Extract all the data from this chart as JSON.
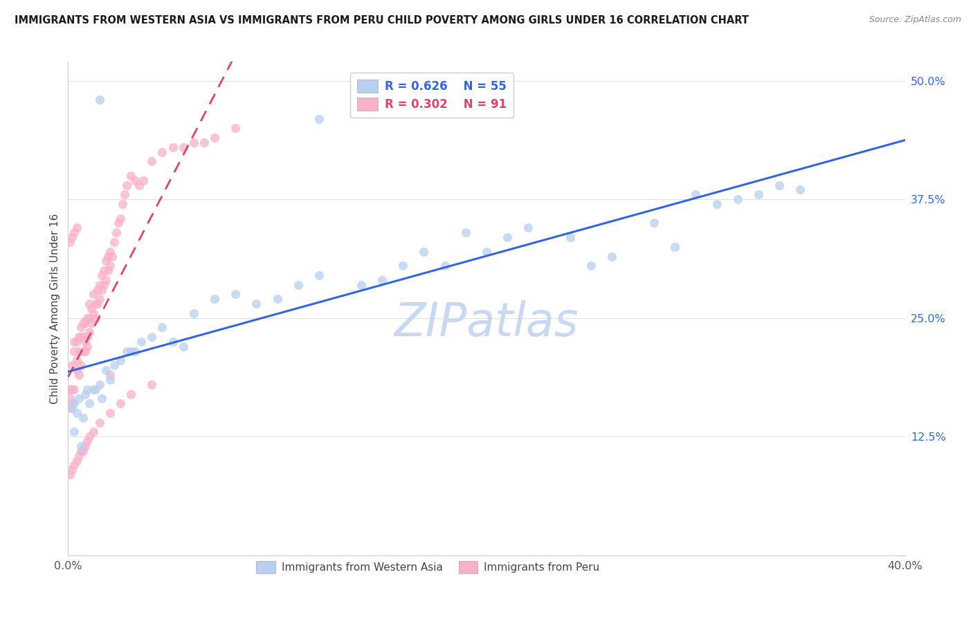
{
  "title": "IMMIGRANTS FROM WESTERN ASIA VS IMMIGRANTS FROM PERU CHILD POVERTY AMONG GIRLS UNDER 16 CORRELATION CHART",
  "source": "Source: ZipAtlas.com",
  "ylabel": "Child Poverty Among Girls Under 16",
  "xlim": [
    0.0,
    0.4
  ],
  "ylim": [
    0.0,
    0.52
  ],
  "ytick_vals": [
    0.0,
    0.125,
    0.25,
    0.375,
    0.5
  ],
  "ytick_labels": [
    "",
    "12.5%",
    "25.0%",
    "37.5%",
    "50.0%"
  ],
  "xtick_vals": [
    0.0,
    0.08,
    0.16,
    0.24,
    0.32,
    0.4
  ],
  "xtick_labels": [
    "0.0%",
    "",
    "",
    "",
    "",
    "40.0%"
  ],
  "grid_color": "#e0e0e0",
  "background_color": "#ffffff",
  "western_asia_color": "#b8d0f0",
  "peru_color": "#f8b0c8",
  "line_wa_color": "#3366dd",
  "line_peru_color": "#dd4466",
  "line_diag_color": "#ddbbcc",
  "legend_wa_r": "R = 0.626",
  "legend_wa_n": "N = 55",
  "legend_peru_r": "R = 0.302",
  "legend_peru_n": "N = 91",
  "watermark": "ZIPatlas",
  "watermark_color": "#c8d8f0",
  "legend_label_wa": "Immigrants from Western Asia",
  "legend_label_peru": "Immigrants from Peru",
  "wa_x": [
    0.002,
    0.003,
    0.004,
    0.005,
    0.007,
    0.008,
    0.009,
    0.01,
    0.012,
    0.013,
    0.015,
    0.016,
    0.018,
    0.02,
    0.022,
    0.025,
    0.028,
    0.03,
    0.032,
    0.035,
    0.04,
    0.045,
    0.05,
    0.055,
    0.06,
    0.07,
    0.08,
    0.09,
    0.1,
    0.11,
    0.12,
    0.14,
    0.15,
    0.16,
    0.17,
    0.18,
    0.19,
    0.2,
    0.21,
    0.22,
    0.24,
    0.25,
    0.26,
    0.28,
    0.29,
    0.3,
    0.31,
    0.32,
    0.33,
    0.34,
    0.35,
    0.003,
    0.006,
    0.12,
    0.015
  ],
  "wa_y": [
    0.155,
    0.16,
    0.15,
    0.165,
    0.145,
    0.17,
    0.175,
    0.16,
    0.175,
    0.175,
    0.18,
    0.165,
    0.195,
    0.185,
    0.2,
    0.205,
    0.215,
    0.215,
    0.215,
    0.225,
    0.23,
    0.24,
    0.225,
    0.22,
    0.255,
    0.27,
    0.275,
    0.265,
    0.27,
    0.285,
    0.295,
    0.285,
    0.29,
    0.305,
    0.32,
    0.305,
    0.34,
    0.32,
    0.335,
    0.345,
    0.335,
    0.305,
    0.315,
    0.35,
    0.325,
    0.38,
    0.37,
    0.375,
    0.38,
    0.39,
    0.385,
    0.13,
    0.115,
    0.46,
    0.48
  ],
  "peru_x": [
    0.001,
    0.001,
    0.001,
    0.002,
    0.002,
    0.002,
    0.003,
    0.003,
    0.003,
    0.004,
    0.004,
    0.004,
    0.005,
    0.005,
    0.005,
    0.006,
    0.006,
    0.006,
    0.007,
    0.007,
    0.007,
    0.008,
    0.008,
    0.008,
    0.009,
    0.009,
    0.009,
    0.01,
    0.01,
    0.01,
    0.011,
    0.011,
    0.012,
    0.012,
    0.013,
    0.013,
    0.014,
    0.014,
    0.015,
    0.015,
    0.016,
    0.016,
    0.017,
    0.017,
    0.018,
    0.018,
    0.019,
    0.019,
    0.02,
    0.02,
    0.021,
    0.022,
    0.023,
    0.024,
    0.025,
    0.026,
    0.027,
    0.028,
    0.03,
    0.032,
    0.034,
    0.036,
    0.04,
    0.045,
    0.05,
    0.055,
    0.06,
    0.065,
    0.07,
    0.08,
    0.001,
    0.002,
    0.003,
    0.004,
    0.005,
    0.006,
    0.007,
    0.008,
    0.009,
    0.01,
    0.012,
    0.015,
    0.02,
    0.025,
    0.03,
    0.04,
    0.001,
    0.002,
    0.003,
    0.004,
    0.02
  ],
  "peru_y": [
    0.155,
    0.165,
    0.175,
    0.16,
    0.175,
    0.2,
    0.175,
    0.215,
    0.225,
    0.195,
    0.205,
    0.225,
    0.19,
    0.215,
    0.23,
    0.2,
    0.23,
    0.24,
    0.215,
    0.23,
    0.245,
    0.215,
    0.225,
    0.245,
    0.22,
    0.23,
    0.25,
    0.235,
    0.25,
    0.265,
    0.245,
    0.26,
    0.255,
    0.275,
    0.25,
    0.265,
    0.265,
    0.28,
    0.27,
    0.285,
    0.28,
    0.295,
    0.285,
    0.3,
    0.29,
    0.31,
    0.3,
    0.315,
    0.305,
    0.32,
    0.315,
    0.33,
    0.34,
    0.35,
    0.355,
    0.37,
    0.38,
    0.39,
    0.4,
    0.395,
    0.39,
    0.395,
    0.415,
    0.425,
    0.43,
    0.43,
    0.435,
    0.435,
    0.44,
    0.45,
    0.085,
    0.09,
    0.095,
    0.1,
    0.105,
    0.11,
    0.11,
    0.115,
    0.12,
    0.125,
    0.13,
    0.14,
    0.15,
    0.16,
    0.17,
    0.18,
    0.33,
    0.335,
    0.34,
    0.345,
    0.19
  ]
}
